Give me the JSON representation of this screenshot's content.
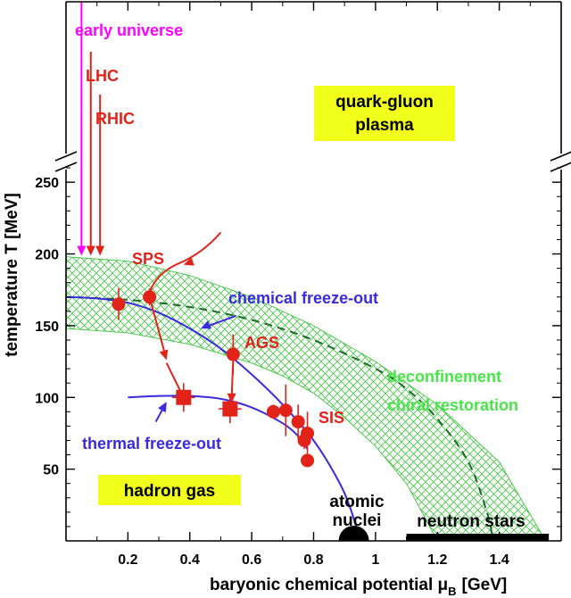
{
  "chart_data": {
    "type": "scatter",
    "title": "",
    "xlabel": "baryonic chemical potential μ",
    "xlabel_sub": "B",
    "xlabel_unit": "[GeV]",
    "ylabel": "temperature T [MeV]",
    "xlim": [
      0,
      1.6
    ],
    "ylim": [
      0,
      270
    ],
    "x_ticks": [
      {
        "v": 0.2,
        "label": "0.2"
      },
      {
        "v": 0.4,
        "label": "0.4"
      },
      {
        "v": 0.6,
        "label": "0.6"
      },
      {
        "v": 0.8,
        "label": "0.8"
      },
      {
        "v": 1.0,
        "label": "1"
      },
      {
        "v": 1.2,
        "label": "1.2"
      },
      {
        "v": 1.4,
        "label": "1.4"
      }
    ],
    "y_ticks": [
      {
        "v": 50,
        "label": "50"
      },
      {
        "v": 100,
        "label": "100"
      },
      {
        "v": 150,
        "label": "150"
      },
      {
        "v": 200,
        "label": "200"
      },
      {
        "v": 250,
        "label": "250"
      }
    ],
    "y_axis_break": true,
    "region_labels": {
      "qgp_line1": "quark-gluon",
      "qgp_line2": "plasma",
      "hadron_gas": "hadron gas",
      "atomic_nuclei_1": "atomic",
      "atomic_nuclei_2": "nuclei",
      "neutron_stars": "neutron stars",
      "deconf_1": "deconfinement",
      "deconf_2": "chiral restoration"
    },
    "experiments": {
      "early_universe": "early universe",
      "lhc": "LHC",
      "rhic": "RHIC",
      "sps": "SPS",
      "ags": "AGS",
      "sis": "SIS"
    },
    "curve_labels": {
      "chemical": "chemical freeze-out",
      "thermal": "thermal freeze-out"
    },
    "chemical_freezeout_points": [
      {
        "x": 0.17,
        "y": 165,
        "err": 11
      },
      {
        "x": 0.27,
        "y": 170,
        "err": 6
      },
      {
        "x": 0.54,
        "y": 130,
        "err": 14
      },
      {
        "x": 0.67,
        "y": 90,
        "err": 5
      },
      {
        "x": 0.71,
        "y": 91,
        "err": 18
      },
      {
        "x": 0.75,
        "y": 83,
        "err": 12
      },
      {
        "x": 0.77,
        "y": 70,
        "err": 6
      },
      {
        "x": 0.78,
        "y": 75,
        "err": 15
      },
      {
        "x": 0.78,
        "y": 56,
        "err": 0
      }
    ],
    "thermal_freezeout_points": [
      {
        "x": 0.38,
        "y": 100,
        "err": 10
      },
      {
        "x": 0.53,
        "y": 92,
        "err": 10
      }
    ],
    "chemical_freezeout_curve": [
      [
        0.0,
        170
      ],
      [
        0.1,
        169
      ],
      [
        0.2,
        166
      ],
      [
        0.3,
        159
      ],
      [
        0.4,
        148
      ],
      [
        0.5,
        134
      ],
      [
        0.6,
        116
      ],
      [
        0.7,
        95
      ],
      [
        0.8,
        70
      ],
      [
        0.88,
        42
      ],
      [
        0.92,
        22
      ],
      [
        0.95,
        0
      ]
    ],
    "thermal_freezeout_curve": [
      [
        0.2,
        100
      ],
      [
        0.3,
        101
      ],
      [
        0.4,
        101
      ],
      [
        0.5,
        99
      ],
      [
        0.6,
        93
      ],
      [
        0.7,
        82
      ],
      [
        0.75,
        73
      ],
      [
        0.78,
        64
      ]
    ],
    "crossover_band_upper": [
      [
        0.0,
        198
      ],
      [
        0.2,
        195
      ],
      [
        0.4,
        185
      ],
      [
        0.6,
        170
      ],
      [
        0.8,
        150
      ],
      [
        1.0,
        125
      ],
      [
        1.2,
        95
      ],
      [
        1.4,
        55
      ],
      [
        1.55,
        0
      ]
    ],
    "crossover_band_lower": [
      [
        0.0,
        148
      ],
      [
        0.2,
        145
      ],
      [
        0.4,
        137
      ],
      [
        0.6,
        124
      ],
      [
        0.7,
        115
      ],
      [
        0.8,
        103
      ],
      [
        0.9,
        86
      ],
      [
        1.0,
        66
      ],
      [
        1.1,
        40
      ],
      [
        1.15,
        20
      ],
      [
        1.2,
        0
      ]
    ],
    "phase_transition_curve": [
      [
        0.0,
        170
      ],
      [
        0.2,
        168
      ],
      [
        0.4,
        163
      ],
      [
        0.6,
        154
      ],
      [
        0.8,
        140
      ],
      [
        1.0,
        120
      ],
      [
        1.1,
        106
      ],
      [
        1.2,
        85
      ],
      [
        1.3,
        55
      ],
      [
        1.36,
        20
      ],
      [
        1.38,
        0
      ]
    ],
    "colors": {
      "data": "#e2231a",
      "freezeout": "#3a2ae0",
      "universe": "#ff00ff",
      "hatch": "#3ec43e",
      "dashed": "#1d6b2a",
      "label_box": "#f2ff1a",
      "deconf_text": "#46e646"
    }
  }
}
